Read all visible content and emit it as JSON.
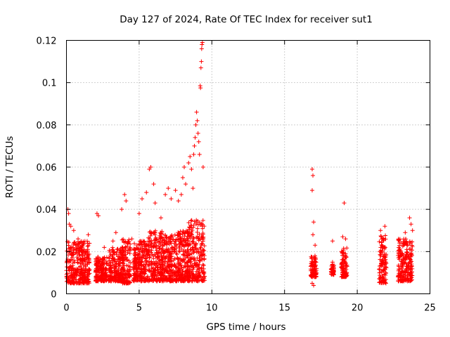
{
  "chart_data": {
    "type": "scatter",
    "title": "Day 127 of 2024, Rate Of TEC Index for receiver sut1",
    "xlabel": "GPS time / hours",
    "ylabel": "ROTI / TECUs",
    "xlim": [
      0,
      25
    ],
    "ylim": [
      0,
      0.12
    ],
    "x_ticks": [
      0,
      5,
      10,
      15,
      20,
      25
    ],
    "x_tick_labels": [
      "0",
      "5",
      "10",
      "15",
      "20",
      "25"
    ],
    "y_ticks": [
      0,
      0.02,
      0.04,
      0.06,
      0.08,
      0.1,
      0.12
    ],
    "y_tick_labels": [
      "0",
      "0.02",
      "0.04",
      "0.06",
      "0.08",
      "0.1",
      "0.12"
    ],
    "grid": true,
    "marker": "+",
    "color": "#ff0000",
    "series": [
      {
        "name": "ROTI",
        "points": [
          [
            0.1,
            0.04
          ],
          [
            0.15,
            0.038
          ],
          [
            0.2,
            0.033
          ],
          [
            0.3,
            0.032
          ],
          [
            0.5,
            0.03
          ],
          [
            0.8,
            0.026
          ],
          [
            1.2,
            0.024
          ],
          [
            1.5,
            0.028
          ],
          [
            2.1,
            0.038
          ],
          [
            2.2,
            0.037
          ],
          [
            2.6,
            0.022
          ],
          [
            3.2,
            0.025
          ],
          [
            3.4,
            0.029
          ],
          [
            3.8,
            0.04
          ],
          [
            4.0,
            0.047
          ],
          [
            4.1,
            0.044
          ],
          [
            4.5,
            0.026
          ],
          [
            5.0,
            0.038
          ],
          [
            5.2,
            0.045
          ],
          [
            5.5,
            0.048
          ],
          [
            5.7,
            0.059
          ],
          [
            5.8,
            0.06
          ],
          [
            6.0,
            0.052
          ],
          [
            6.1,
            0.043
          ],
          [
            6.5,
            0.036
          ],
          [
            6.8,
            0.047
          ],
          [
            7.0,
            0.05
          ],
          [
            7.2,
            0.045
          ],
          [
            7.5,
            0.049
          ],
          [
            7.7,
            0.044
          ],
          [
            7.9,
            0.047
          ],
          [
            8.0,
            0.055
          ],
          [
            8.1,
            0.06
          ],
          [
            8.2,
            0.052
          ],
          [
            8.4,
            0.062
          ],
          [
            8.5,
            0.065
          ],
          [
            8.6,
            0.059
          ],
          [
            8.7,
            0.05
          ],
          [
            8.75,
            0.066
          ],
          [
            8.8,
            0.07
          ],
          [
            8.85,
            0.074
          ],
          [
            8.9,
            0.08
          ],
          [
            8.95,
            0.086
          ],
          [
            9.0,
            0.082
          ],
          [
            9.05,
            0.076
          ],
          [
            9.1,
            0.072
          ],
          [
            9.15,
            0.066
          ],
          [
            9.2,
            0.0985
          ],
          [
            9.22,
            0.0975
          ],
          [
            9.25,
            0.107
          ],
          [
            9.28,
            0.11
          ],
          [
            9.3,
            0.116
          ],
          [
            9.32,
            0.118
          ],
          [
            9.35,
            0.119
          ],
          [
            9.4,
            0.06
          ],
          [
            16.9,
            0.059
          ],
          [
            16.95,
            0.056
          ],
          [
            16.9,
            0.049
          ],
          [
            17.0,
            0.034
          ],
          [
            16.95,
            0.028
          ],
          [
            17.1,
            0.023
          ],
          [
            17.0,
            0.004
          ],
          [
            16.9,
            0.005
          ],
          [
            18.3,
            0.025
          ],
          [
            18.3,
            0.015
          ],
          [
            19.1,
            0.043
          ],
          [
            19.0,
            0.027
          ],
          [
            19.2,
            0.026
          ],
          [
            21.6,
            0.03
          ],
          [
            21.9,
            0.032
          ],
          [
            23.0,
            0.024
          ],
          [
            23.3,
            0.029
          ],
          [
            23.6,
            0.036
          ],
          [
            23.7,
            0.033
          ],
          [
            23.8,
            0.03
          ]
        ]
      }
    ],
    "dense_bands": [
      {
        "x": [
          0.0,
          1.6
        ],
        "y": [
          0.005,
          0.025
        ]
      },
      {
        "x": [
          2.0,
          2.8
        ],
        "y": [
          0.006,
          0.018
        ]
      },
      {
        "x": [
          2.9,
          3.9
        ],
        "y": [
          0.006,
          0.022
        ]
      },
      {
        "x": [
          3.8,
          4.4
        ],
        "y": [
          0.005,
          0.026
        ]
      },
      {
        "x": [
          4.6,
          5.6
        ],
        "y": [
          0.006,
          0.025
        ]
      },
      {
        "x": [
          5.6,
          6.6
        ],
        "y": [
          0.006,
          0.03
        ]
      },
      {
        "x": [
          6.6,
          7.6
        ],
        "y": [
          0.006,
          0.028
        ]
      },
      {
        "x": [
          7.6,
          8.4
        ],
        "y": [
          0.006,
          0.03
        ]
      },
      {
        "x": [
          8.3,
          9.5
        ],
        "y": [
          0.006,
          0.035
        ]
      },
      {
        "x": [
          16.8,
          17.2
        ],
        "y": [
          0.008,
          0.018
        ]
      },
      {
        "x": [
          18.2,
          18.4
        ],
        "y": [
          0.009,
          0.014
        ]
      },
      {
        "x": [
          18.9,
          19.3
        ],
        "y": [
          0.008,
          0.022
        ]
      },
      {
        "x": [
          21.5,
          22.0
        ],
        "y": [
          0.005,
          0.028
        ]
      },
      {
        "x": [
          22.8,
          23.8
        ],
        "y": [
          0.006,
          0.026
        ]
      }
    ]
  }
}
